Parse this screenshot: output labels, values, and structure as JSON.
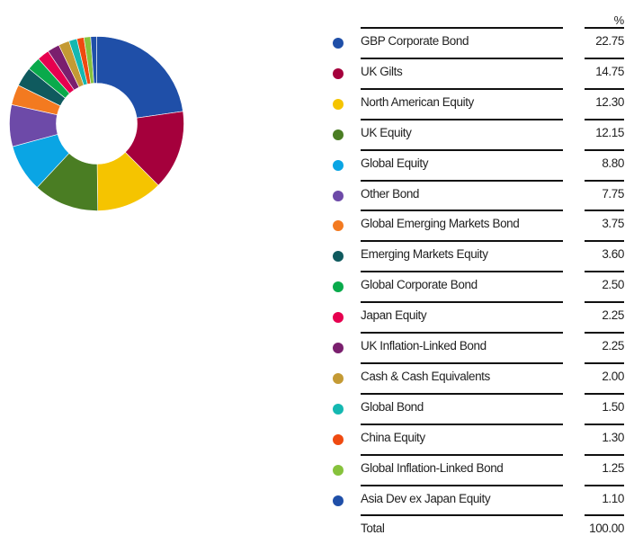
{
  "chart_data": {
    "type": "pie",
    "value_header": "%",
    "categories": [
      "GBP Corporate Bond",
      "UK Gilts",
      "North American Equity",
      "UK Equity",
      "Global Equity",
      "Other Bond",
      "Global Emerging Markets Bond",
      "Emerging Markets Equity",
      "Global Corporate Bond",
      "Japan Equity",
      "UK Inflation-Linked Bond",
      "Cash & Cash Equivalents",
      "Global Bond",
      "China Equity",
      "Global Inflation-Linked Bond",
      "Asia Dev ex Japan Equity"
    ],
    "values": [
      22.75,
      14.75,
      12.3,
      12.15,
      8.8,
      7.75,
      3.75,
      3.6,
      2.5,
      2.25,
      2.25,
      2.0,
      1.5,
      1.3,
      1.25,
      1.1
    ],
    "value_labels": [
      "22.75",
      "14.75",
      "12.30",
      "12.15",
      "8.80",
      "7.75",
      "3.75",
      "3.60",
      "2.50",
      "2.25",
      "2.25",
      "2.00",
      "1.50",
      "1.30",
      "1.25",
      "1.10"
    ],
    "colors": [
      "#1f4fa8",
      "#a5003c",
      "#f5c400",
      "#4a7d23",
      "#0aa5e4",
      "#6d4aa8",
      "#f37a20",
      "#0f5a5e",
      "#09aa4b",
      "#e6004f",
      "#7a1f6e",
      "#c49a34",
      "#14b8b1",
      "#ef4a10",
      "#86c23c",
      "#1f4fa8"
    ],
    "total_label": "Total",
    "total_value": "100.00"
  }
}
